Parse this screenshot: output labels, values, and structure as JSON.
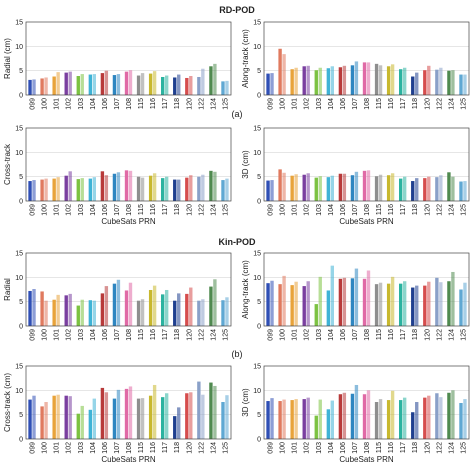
{
  "figure": {
    "section_titles": [
      "RD-POD",
      "Kin-POD"
    ],
    "panel_labels": [
      "(a)",
      "(b)"
    ]
  },
  "colors": [
    "#2f4fb5",
    "#e07a5f",
    "#e8a33a",
    "#7a3fa0",
    "#7cc242",
    "#3fb3d6",
    "#b83a3a",
    "#2e86c1",
    "#e06aa6",
    "#8e8e8e",
    "#c8b82e",
    "#2bb3a0",
    "#1f3f8f",
    "#d64d4d",
    "#8aa0c8",
    "#4f8a4f",
    "#5fa8d3",
    "#7e57c2",
    "#66bb6a",
    "#26a69a",
    "#5c6bc0",
    "#43a047",
    "#f06292"
  ],
  "chart_data": [
    {
      "type": "bar",
      "group": "RD-POD",
      "ylabel": "Radial (cm)",
      "xlabel": "",
      "ylim": [
        0,
        15
      ],
      "yticks": [
        0,
        5,
        10,
        15
      ],
      "grid": true,
      "categories": [
        "099",
        "100",
        "101",
        "102",
        "103",
        "104",
        "106",
        "107",
        "108",
        "115",
        "116",
        "117",
        "118",
        "120",
        "122",
        "124",
        "125"
      ],
      "series": [
        {
          "values": [
            3.1,
            3.4,
            3.8,
            4.6,
            3.9,
            4.2,
            4.5,
            4.1,
            4.8,
            4.0,
            4.4,
            3.7,
            3.6,
            3.5,
            3.7,
            5.9,
            2.8
          ]
        },
        {
          "values": [
            3.2,
            3.6,
            4.7,
            4.8,
            4.3,
            4.3,
            5.0,
            4.3,
            5.1,
            4.5,
            4.9,
            4.0,
            4.2,
            3.9,
            5.4,
            6.4,
            2.9
          ]
        }
      ]
    },
    {
      "type": "bar",
      "group": "RD-POD",
      "ylabel": "Along-track (cm)",
      "xlabel": "",
      "ylim": [
        0,
        15
      ],
      "yticks": [
        0,
        5,
        10,
        15
      ],
      "grid": true,
      "categories": [
        "099",
        "100",
        "101",
        "102",
        "103",
        "104",
        "106",
        "107",
        "108",
        "115",
        "116",
        "117",
        "118",
        "120",
        "122",
        "124",
        "125"
      ],
      "series": [
        {
          "values": [
            4.4,
            9.5,
            5.3,
            5.9,
            5.1,
            5.5,
            5.7,
            6.1,
            6.7,
            6.4,
            5.9,
            5.3,
            3.8,
            5.1,
            5.2,
            5.0,
            4.2
          ]
        },
        {
          "values": [
            4.5,
            8.4,
            5.6,
            6.0,
            5.6,
            5.9,
            6.0,
            6.9,
            6.7,
            6.1,
            6.3,
            5.6,
            4.6,
            6.0,
            5.6,
            5.1,
            4.2
          ]
        }
      ]
    },
    {
      "type": "bar",
      "group": "RD-POD",
      "ylabel": "Cross-track",
      "xlabel": "CubeSats PRN",
      "ylim": [
        0,
        15
      ],
      "yticks": [
        0,
        5,
        10,
        15
      ],
      "grid": true,
      "categories": [
        "099",
        "100",
        "101",
        "102",
        "103",
        "104",
        "106",
        "107",
        "108",
        "115",
        "116",
        "117",
        "118",
        "120",
        "122",
        "124",
        "125"
      ],
      "series": [
        {
          "values": [
            4.1,
            4.4,
            4.6,
            5.2,
            4.5,
            4.6,
            6.1,
            5.6,
            6.3,
            5.0,
            5.2,
            4.7,
            4.4,
            4.8,
            5.0,
            6.2,
            4.3
          ]
        },
        {
          "values": [
            4.3,
            4.6,
            4.9,
            6.1,
            4.7,
            4.9,
            5.3,
            5.9,
            6.2,
            4.8,
            5.7,
            5.0,
            4.4,
            5.3,
            5.4,
            6.0,
            4.6
          ]
        }
      ]
    },
    {
      "type": "bar",
      "group": "RD-POD",
      "ylabel": "3D (cm)",
      "xlabel": "CubeSats PRN",
      "ylim": [
        0,
        15
      ],
      "yticks": [
        0,
        5,
        10,
        15
      ],
      "grid": true,
      "categories": [
        "099",
        "100",
        "101",
        "102",
        "103",
        "104",
        "106",
        "107",
        "108",
        "115",
        "116",
        "117",
        "118",
        "120",
        "122",
        "124",
        "125"
      ],
      "series": [
        {
          "values": [
            4.2,
            6.5,
            5.2,
            5.4,
            4.8,
            4.9,
            5.6,
            5.3,
            6.2,
            5.1,
            5.3,
            4.6,
            4.1,
            4.7,
            4.9,
            5.9,
            4.0
          ]
        },
        {
          "values": [
            4.3,
            5.8,
            5.5,
            5.7,
            5.1,
            5.2,
            5.6,
            6.0,
            6.3,
            5.4,
            5.7,
            5.0,
            4.7,
            5.0,
            5.3,
            5.0,
            4.1
          ]
        }
      ]
    },
    {
      "type": "bar",
      "group": "Kin-POD",
      "ylabel": "Radial",
      "xlabel": "",
      "ylim": [
        0,
        15
      ],
      "yticks": [
        0,
        5,
        10,
        15
      ],
      "grid": true,
      "categories": [
        "099",
        "100",
        "101",
        "102",
        "103",
        "104",
        "106",
        "107",
        "108",
        "115",
        "116",
        "117",
        "118",
        "120",
        "122",
        "124",
        "125"
      ],
      "series": [
        {
          "values": [
            7.2,
            7.1,
            5.4,
            6.3,
            4.2,
            5.3,
            6.7,
            8.7,
            7.3,
            5.2,
            7.4,
            6.5,
            5.2,
            6.6,
            5.2,
            8.1,
            5.3
          ]
        },
        {
          "values": [
            7.6,
            5.2,
            6.4,
            6.6,
            5.4,
            5.2,
            8.2,
            9.5,
            8.9,
            5.5,
            8.3,
            7.4,
            6.7,
            7.9,
            5.5,
            9.6,
            5.9
          ]
        }
      ]
    },
    {
      "type": "bar",
      "group": "Kin-POD",
      "ylabel": "Along-track (cm)",
      "xlabel": "",
      "ylim": [
        0,
        15
      ],
      "yticks": [
        0,
        5,
        10,
        15
      ],
      "grid": true,
      "categories": [
        "099",
        "100",
        "101",
        "102",
        "103",
        "104",
        "106",
        "107",
        "108",
        "115",
        "116",
        "117",
        "118",
        "120",
        "122",
        "124",
        "125"
      ],
      "series": [
        {
          "values": [
            8.8,
            8.6,
            8.4,
            8.2,
            4.5,
            7.3,
            9.7,
            9.8,
            9.7,
            8.6,
            8.7,
            8.7,
            7.9,
            8.3,
            9.9,
            9.2,
            7.5
          ]
        },
        {
          "values": [
            9.3,
            10.3,
            9.1,
            9.2,
            10.1,
            12.4,
            9.9,
            11.8,
            11.4,
            8.9,
            10.1,
            9.2,
            8.3,
            9.1,
            9.0,
            11.1,
            8.9
          ]
        }
      ]
    },
    {
      "type": "bar",
      "group": "Kin-POD",
      "ylabel": "Cross-track (cm)",
      "xlabel": "CubeSats PRN",
      "ylim": [
        0,
        15
      ],
      "yticks": [
        0,
        5,
        10,
        15
      ],
      "grid": true,
      "categories": [
        "099",
        "100",
        "101",
        "102",
        "103",
        "104",
        "106",
        "107",
        "108",
        "115",
        "116",
        "117",
        "118",
        "120",
        "122",
        "124",
        "125"
      ],
      "series": [
        {
          "values": [
            8.1,
            6.7,
            8.9,
            8.9,
            5.2,
            6.0,
            10.5,
            8.3,
            10.3,
            8.3,
            8.9,
            8.6,
            4.7,
            9.4,
            11.8,
            11.6,
            7.6
          ]
        },
        {
          "values": [
            8.9,
            7.6,
            9.1,
            8.8,
            6.8,
            8.3,
            9.6,
            10.1,
            10.8,
            8.4,
            11.1,
            9.4,
            6.5,
            9.6,
            9.1,
            10.9,
            9.0
          ]
        }
      ]
    },
    {
      "type": "bar",
      "group": "Kin-POD",
      "ylabel": "3D (cm)",
      "xlabel": "CubeSats PRN",
      "ylim": [
        0,
        15
      ],
      "yticks": [
        0,
        5,
        10,
        15
      ],
      "grid": true,
      "categories": [
        "099",
        "100",
        "101",
        "102",
        "103",
        "104",
        "106",
        "107",
        "108",
        "115",
        "116",
        "117",
        "118",
        "120",
        "122",
        "124",
        "125"
      ],
      "series": [
        {
          "values": [
            7.8,
            7.8,
            8.0,
            8.2,
            4.8,
            6.1,
            9.2,
            9.3,
            9.2,
            7.6,
            8.0,
            8.0,
            5.5,
            8.5,
            9.4,
            9.5,
            7.4
          ]
        },
        {
          "values": [
            8.4,
            8.1,
            8.2,
            8.5,
            8.1,
            7.9,
            9.5,
            11.1,
            10.0,
            8.2,
            9.9,
            8.5,
            7.6,
            8.9,
            8.6,
            10.0,
            8.2
          ]
        }
      ]
    }
  ]
}
